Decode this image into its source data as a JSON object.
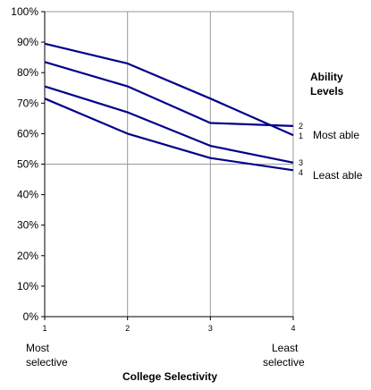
{
  "chart_data": {
    "type": "line",
    "x": [
      1,
      2,
      3,
      4
    ],
    "x_tick_labels": [
      "1",
      "2",
      "3",
      "4"
    ],
    "x_end_labels": {
      "left": [
        "Most",
        "selective"
      ],
      "right": [
        "Least",
        "selective"
      ]
    },
    "xlabel": "College Selectivity",
    "ylim": [
      0,
      100
    ],
    "y_tick_labels": [
      "0%",
      "10%",
      "20%",
      "30%",
      "40%",
      "50%",
      "60%",
      "70%",
      "80%",
      "90%",
      "100%"
    ],
    "grid": "vertical lines at x ticks, horizontal line at 50%",
    "legend": {
      "title_lines": [
        "Ability",
        "Levels"
      ],
      "most_label": "Most able",
      "least_label": "Least able"
    },
    "series": [
      {
        "name": "1",
        "values": [
          89.5,
          83,
          71.5,
          59.5
        ]
      },
      {
        "name": "2",
        "values": [
          83.5,
          75.5,
          63.5,
          62.5
        ]
      },
      {
        "name": "3",
        "values": [
          75.5,
          67,
          56,
          50.5
        ]
      },
      {
        "name": "4",
        "values": [
          71.5,
          60,
          52,
          48
        ]
      }
    ],
    "line_color": "#00008B"
  }
}
